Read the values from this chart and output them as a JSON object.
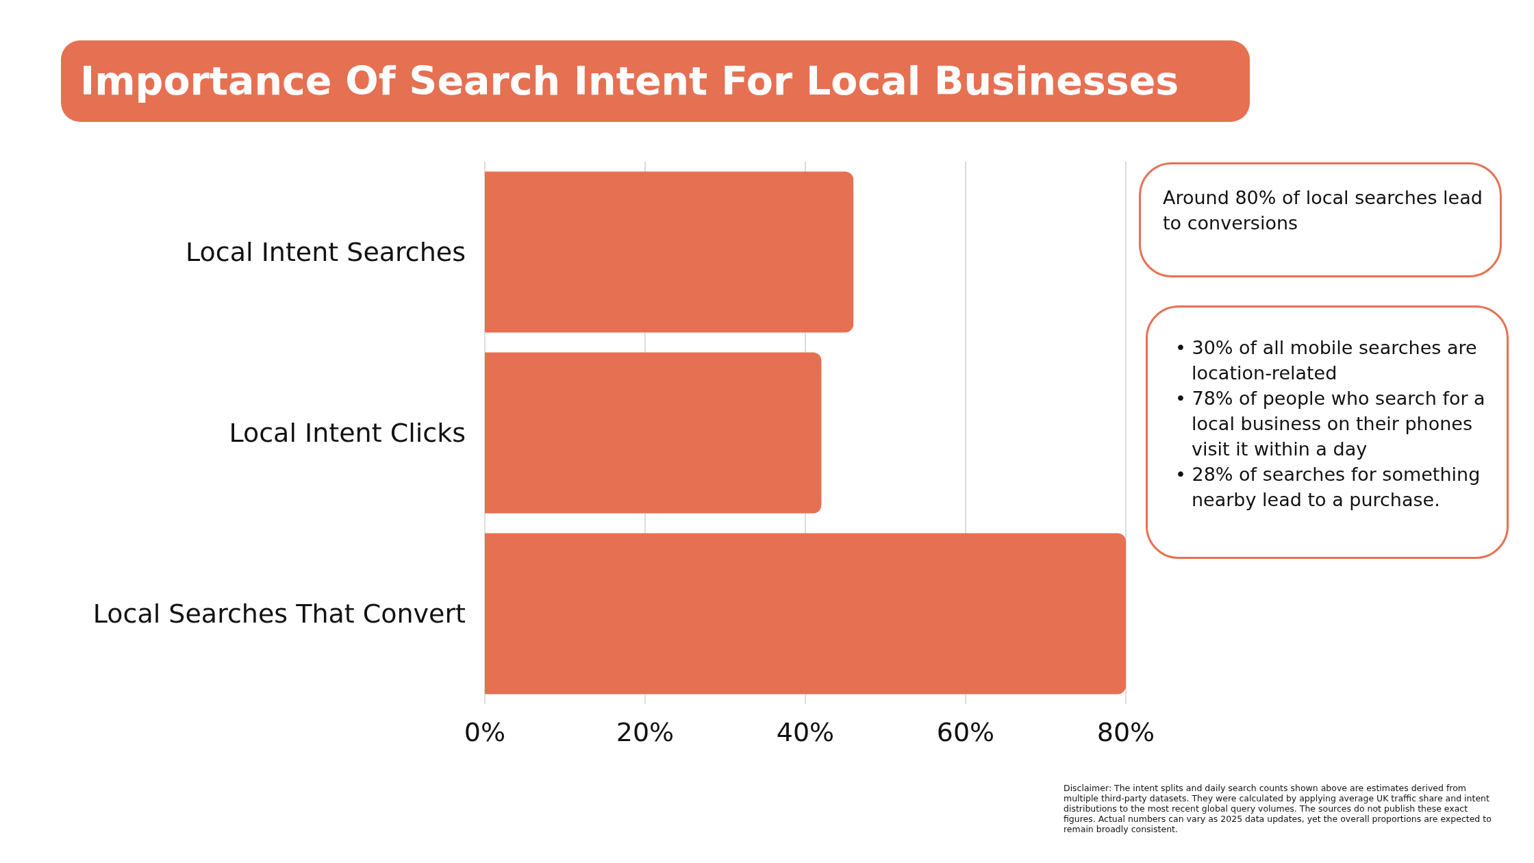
{
  "chart_data": {
    "type": "bar",
    "orientation": "horizontal",
    "title": "Importance Of Search Intent For Local Businesses",
    "categories": [
      "Local Intent Searches",
      "Local Intent Clicks",
      "Local Searches That Convert"
    ],
    "values": [
      46,
      42,
      80
    ],
    "color": "#e67052",
    "xlim": [
      0,
      80
    ],
    "xticks": [
      {
        "value": 0,
        "label": "0%"
      },
      {
        "value": 20,
        "label": "20%"
      },
      {
        "value": 40,
        "label": "40%"
      },
      {
        "value": 60,
        "label": "60%"
      },
      {
        "value": 80,
        "label": "80%"
      }
    ],
    "grid": "x",
    "annotations": [
      "Around 80% of local searches lead to conversions",
      "• 30% of all mobile searches are location-related",
      "• 78% of people who search for a local business on their phones visit it within a day",
      "• 28% of searches for something nearby lead to a purchase.",
      "Disclaimer: The intent splits and daily search counts shown above are estimates derived from multiple third-party datasets. They were calculated by applying average UK traffic share and intent distributions to the most recent global query volumes. The sources do not publish these exact figures. Actual numbers can vary as 2025 data updates, yet the overall proportions are expected to remain broadly consistent."
    ]
  }
}
